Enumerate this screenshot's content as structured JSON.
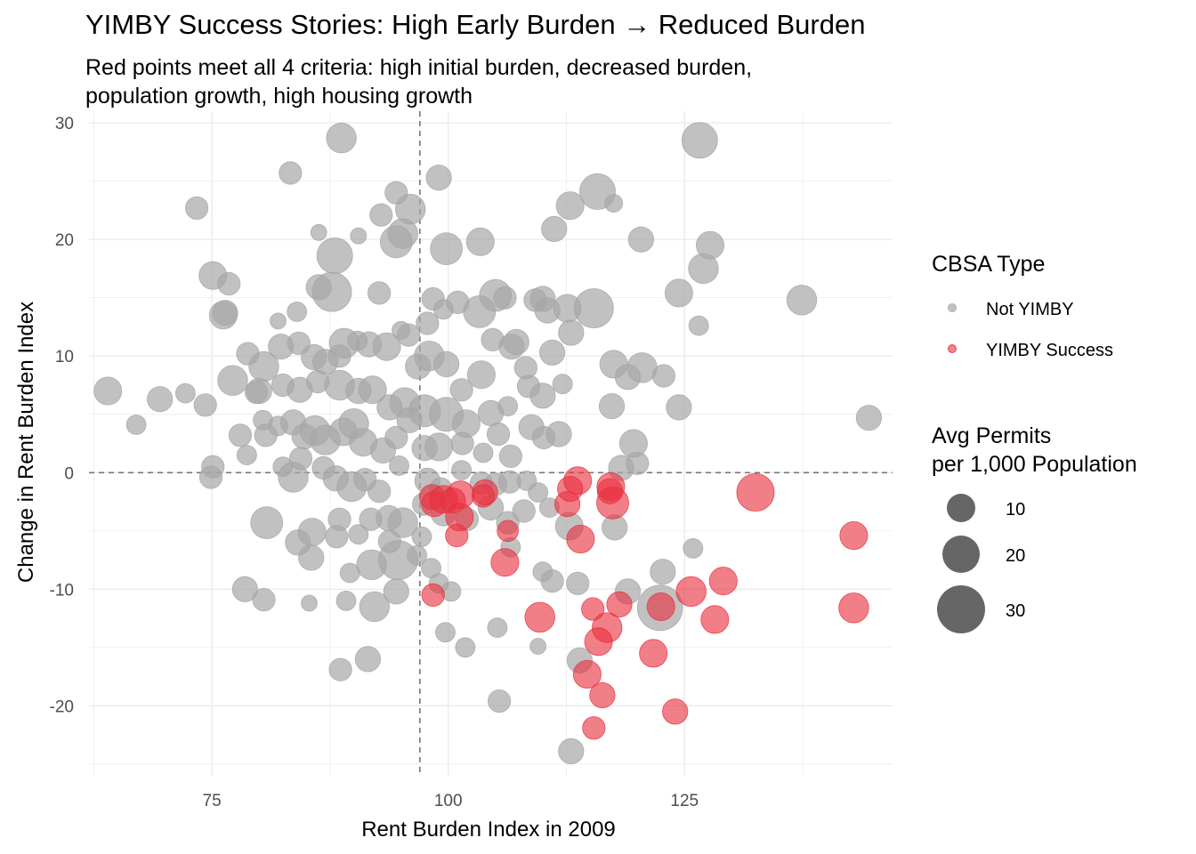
{
  "chart_data": {
    "type": "scatter",
    "title": "YIMBY Success Stories: High Early Burden → Reduced Burden",
    "subtitle_lines": [
      "Red points meet all 4 criteria: high initial burden, decreased burden,",
      "population growth, high housing growth"
    ],
    "xlabel": "Rent Burden Index in 2009",
    "ylabel": "Change in Rent Burden Index",
    "xlim": [
      62,
      147
    ],
    "ylim": [
      -26,
      31
    ],
    "x_ticks": [
      75,
      100,
      125
    ],
    "y_ticks": [
      -20,
      -10,
      0,
      10,
      20,
      30
    ],
    "reference_lines": {
      "x": 97,
      "y": 0
    },
    "grid": true,
    "colors": {
      "not_yimby": "#a6a6a6",
      "yimby": "#e8303f",
      "size_legend": "#555555",
      "grid": "#ebebeb",
      "reference": "#777777"
    },
    "legend": {
      "placement": "right",
      "color_title": "CBSA Type",
      "color_entries": [
        "Not YIMBY",
        "YIMBY Success"
      ],
      "size_title_lines": [
        "Avg Permits",
        "per 1,000 Population"
      ],
      "size_entries": [
        10,
        20,
        30
      ]
    },
    "series": [
      {
        "name": "YIMBY Success",
        "color": "#e8303f",
        "points": [
          [
            98.3,
            -2.1,
            10
          ],
          [
            98.5,
            -2.7,
            10
          ],
          [
            99.5,
            -2.3,
            12
          ],
          [
            100.5,
            -2.4,
            10
          ],
          [
            101.3,
            -1.9,
            12
          ],
          [
            101.2,
            -3.8,
            12
          ],
          [
            100.9,
            -5.4,
            8
          ],
          [
            103.9,
            -1.7,
            10
          ],
          [
            103.7,
            -2.0,
            8
          ],
          [
            106.3,
            -5.0,
            7
          ],
          [
            106.0,
            -7.7,
            12
          ],
          [
            98.4,
            -10.5,
            8
          ],
          [
            112.6,
            -2.7,
            10
          ],
          [
            113.7,
            -0.7,
            12
          ],
          [
            112.9,
            -1.4,
            10
          ],
          [
            117.2,
            -1.2,
            12
          ],
          [
            117.1,
            -1.6,
            10
          ],
          [
            117.4,
            -2.6,
            16
          ],
          [
            114.0,
            -5.7,
            12
          ],
          [
            109.7,
            -12.4,
            14
          ],
          [
            115.3,
            -11.7,
            8
          ],
          [
            116.8,
            -13.3,
            14
          ],
          [
            115.9,
            -14.5,
            12
          ],
          [
            114.7,
            -17.3,
            12
          ],
          [
            116.3,
            -19.1,
            10
          ],
          [
            115.4,
            -21.9,
            8
          ],
          [
            118.1,
            -11.3,
            10
          ],
          [
            121.7,
            -15.5,
            12
          ],
          [
            122.5,
            -11.5,
            12
          ],
          [
            125.7,
            -10.2,
            14
          ],
          [
            128.2,
            -12.6,
            12
          ],
          [
            129.1,
            -9.3,
            12
          ],
          [
            124.0,
            -20.5,
            10
          ],
          [
            132.5,
            -1.7,
            22
          ],
          [
            142.9,
            -5.4,
            12
          ],
          [
            142.9,
            -11.6,
            14
          ]
        ]
      },
      {
        "name": "Not YIMBY",
        "color": "#a6a6a6",
        "points": [
          [
            88.7,
            28.7,
            14
          ],
          [
            126.6,
            28.5,
            20
          ],
          [
            83.3,
            25.7,
            8
          ],
          [
            73.4,
            22.7,
            8
          ],
          [
            94.5,
            24.0,
            8
          ],
          [
            99.0,
            25.3,
            10
          ],
          [
            115.8,
            24.1,
            20
          ],
          [
            112.9,
            22.9,
            12
          ],
          [
            92.9,
            22.1,
            8
          ],
          [
            96.0,
            22.6,
            14
          ],
          [
            117.5,
            23.1,
            5
          ],
          [
            86.3,
            20.6,
            4
          ],
          [
            94.5,
            19.8,
            16
          ],
          [
            95.2,
            20.5,
            14
          ],
          [
            99.8,
            19.2,
            16
          ],
          [
            103.4,
            19.8,
            12
          ],
          [
            111.2,
            20.9,
            10
          ],
          [
            120.4,
            20.0,
            10
          ],
          [
            127.7,
            19.5,
            12
          ],
          [
            88.0,
            18.6,
            20
          ],
          [
            90.5,
            20.3,
            4
          ],
          [
            75.1,
            16.9,
            12
          ],
          [
            76.8,
            16.2,
            8
          ],
          [
            86.3,
            15.9,
            10
          ],
          [
            87.7,
            15.5,
            24
          ],
          [
            92.7,
            15.4,
            8
          ],
          [
            98.4,
            14.9,
            8
          ],
          [
            101.0,
            14.6,
            8
          ],
          [
            105.0,
            15.2,
            16
          ],
          [
            106.0,
            15.0,
            8
          ],
          [
            109.2,
            14.8,
            8
          ],
          [
            110.0,
            14.9,
            10
          ],
          [
            112.6,
            14.1,
            12
          ],
          [
            115.4,
            14.1,
            24
          ],
          [
            124.4,
            15.4,
            12
          ],
          [
            127.0,
            17.5,
            14
          ],
          [
            137.4,
            14.8,
            14
          ],
          [
            76.2,
            13.5,
            12
          ],
          [
            76.4,
            13.7,
            10
          ],
          [
            82.0,
            13.0,
            4
          ],
          [
            84.0,
            13.8,
            6
          ],
          [
            95.0,
            12.2,
            5
          ],
          [
            97.8,
            12.8,
            8
          ],
          [
            99.5,
            14.0,
            6
          ],
          [
            103.3,
            13.8,
            16
          ],
          [
            104.7,
            11.4,
            8
          ],
          [
            107.2,
            11.2,
            10
          ],
          [
            110.5,
            13.9,
            10
          ],
          [
            113.0,
            12.0,
            10
          ],
          [
            126.5,
            12.6,
            6
          ],
          [
            78.8,
            10.2,
            8
          ],
          [
            80.5,
            9.1,
            14
          ],
          [
            82.3,
            10.8,
            10
          ],
          [
            84.2,
            11.1,
            8
          ],
          [
            85.8,
            9.9,
            10
          ],
          [
            87.0,
            9.5,
            10
          ],
          [
            88.5,
            10.0,
            8
          ],
          [
            89.0,
            11.1,
            14
          ],
          [
            90.4,
            11.3,
            6
          ],
          [
            91.6,
            11.0,
            10
          ],
          [
            93.5,
            10.8,
            12
          ],
          [
            95.8,
            11.8,
            8
          ],
          [
            96.8,
            9.1,
            10
          ],
          [
            98.0,
            10.0,
            14
          ],
          [
            99.8,
            9.3,
            10
          ],
          [
            101.4,
            7.1,
            8
          ],
          [
            103.5,
            8.4,
            12
          ],
          [
            106.7,
            10.8,
            10
          ],
          [
            108.2,
            9.0,
            8
          ],
          [
            111.0,
            10.3,
            10
          ],
          [
            117.5,
            9.3,
            12
          ],
          [
            120.5,
            9.0,
            14
          ],
          [
            122.8,
            8.3,
            8
          ],
          [
            119.0,
            8.2,
            10
          ],
          [
            77.2,
            7.9,
            14
          ],
          [
            80.0,
            7.0,
            10
          ],
          [
            82.5,
            7.5,
            8
          ],
          [
            84.3,
            7.1,
            10
          ],
          [
            86.2,
            7.8,
            8
          ],
          [
            88.5,
            7.5,
            14
          ],
          [
            90.5,
            7.0,
            10
          ],
          [
            92.0,
            7.1,
            12
          ],
          [
            93.8,
            5.6,
            10
          ],
          [
            95.4,
            6.0,
            14
          ],
          [
            97.5,
            5.3,
            16
          ],
          [
            99.8,
            5.0,
            18
          ],
          [
            101.9,
            4.2,
            12
          ],
          [
            104.5,
            5.1,
            10
          ],
          [
            106.3,
            5.7,
            6
          ],
          [
            108.5,
            7.4,
            8
          ],
          [
            110.0,
            6.6,
            10
          ],
          [
            112.1,
            7.6,
            6
          ],
          [
            64.0,
            7.0,
            12
          ],
          [
            67.0,
            4.1,
            6
          ],
          [
            69.5,
            6.3,
            10
          ],
          [
            72.2,
            6.8,
            6
          ],
          [
            74.3,
            5.8,
            8
          ],
          [
            79.7,
            6.9,
            8
          ],
          [
            80.4,
            4.5,
            6
          ],
          [
            82.0,
            4.0,
            6
          ],
          [
            83.6,
            4.3,
            10
          ],
          [
            84.8,
            3.1,
            10
          ],
          [
            85.9,
            3.6,
            14
          ],
          [
            87.0,
            2.8,
            14
          ],
          [
            88.9,
            3.5,
            12
          ],
          [
            90.0,
            4.2,
            14
          ],
          [
            91.0,
            2.6,
            12
          ],
          [
            93.1,
            1.9,
            10
          ],
          [
            94.5,
            3.0,
            8
          ],
          [
            95.9,
            4.5,
            10
          ],
          [
            97.5,
            2.1,
            10
          ],
          [
            99.0,
            2.2,
            12
          ],
          [
            101.5,
            2.5,
            8
          ],
          [
            103.7,
            1.7,
            6
          ],
          [
            105.3,
            3.3,
            8
          ],
          [
            106.6,
            1.4,
            8
          ],
          [
            108.8,
            3.9,
            10
          ],
          [
            110.1,
            3.0,
            8
          ],
          [
            111.7,
            3.3,
            10
          ],
          [
            117.3,
            5.7,
            10
          ],
          [
            119.6,
            2.5,
            12
          ],
          [
            124.4,
            5.6,
            10
          ],
          [
            144.5,
            4.7,
            10
          ],
          [
            78.0,
            3.2,
            8
          ],
          [
            80.7,
            3.2,
            8
          ],
          [
            75.1,
            0.5,
            8
          ],
          [
            74.9,
            -0.4,
            8
          ],
          [
            78.7,
            1.5,
            6
          ],
          [
            82.5,
            0.5,
            6
          ],
          [
            83.6,
            -0.4,
            14
          ],
          [
            84.4,
            1.2,
            8
          ],
          [
            86.8,
            0.4,
            8
          ],
          [
            88.1,
            -0.5,
            10
          ],
          [
            89.8,
            -1.2,
            14
          ],
          [
            91.2,
            -0.6,
            8
          ],
          [
            92.7,
            -1.6,
            8
          ],
          [
            94.8,
            0.6,
            6
          ],
          [
            97.8,
            -0.7,
            10
          ],
          [
            99.2,
            -1.4,
            8
          ],
          [
            101.4,
            0.2,
            6
          ],
          [
            103.5,
            -0.9,
            8
          ],
          [
            105.0,
            -1.0,
            8
          ],
          [
            106.5,
            -0.8,
            8
          ],
          [
            108.3,
            -0.7,
            6
          ],
          [
            109.5,
            -1.7,
            6
          ],
          [
            118.3,
            0.4,
            10
          ],
          [
            120.0,
            0.8,
            8
          ],
          [
            80.8,
            -4.3,
            16
          ],
          [
            85.6,
            -5.1,
            12
          ],
          [
            88.5,
            -4.0,
            8
          ],
          [
            91.8,
            -4.0,
            8
          ],
          [
            93.7,
            -3.9,
            10
          ],
          [
            95.2,
            -4.3,
            14
          ],
          [
            97.4,
            -2.7,
            8
          ],
          [
            99.5,
            -3.5,
            10
          ],
          [
            102.0,
            -4.0,
            8
          ],
          [
            104.5,
            -3.0,
            10
          ],
          [
            106.3,
            -4.3,
            8
          ],
          [
            108.0,
            -3.3,
            8
          ],
          [
            110.7,
            -3.0,
            6
          ],
          [
            112.8,
            -4.6,
            12
          ],
          [
            117.6,
            -4.7,
            10
          ],
          [
            88.2,
            -5.5,
            8
          ],
          [
            90.5,
            -5.3,
            6
          ],
          [
            93.8,
            -5.9,
            8
          ],
          [
            97.2,
            -5.5,
            6
          ],
          [
            84.1,
            -6.0,
            10
          ],
          [
            85.5,
            -7.3,
            10
          ],
          [
            89.6,
            -8.6,
            6
          ],
          [
            91.9,
            -7.9,
            14
          ],
          [
            94.7,
            -7.5,
            24
          ],
          [
            96.7,
            -7.1,
            6
          ],
          [
            98.2,
            -8.2,
            6
          ],
          [
            99.0,
            -9.5,
            6
          ],
          [
            100.3,
            -10.2,
            6
          ],
          [
            106.6,
            -6.4,
            6
          ],
          [
            110.0,
            -8.5,
            6
          ],
          [
            111.0,
            -9.3,
            8
          ],
          [
            113.7,
            -9.5,
            8
          ],
          [
            125.9,
            -6.5,
            6
          ],
          [
            122.7,
            -8.5,
            10
          ],
          [
            78.5,
            -10.0,
            10
          ],
          [
            80.5,
            -10.9,
            8
          ],
          [
            85.3,
            -11.2,
            4
          ],
          [
            89.2,
            -11.0,
            6
          ],
          [
            92.2,
            -11.5,
            14
          ],
          [
            94.5,
            -10.2,
            10
          ],
          [
            99.7,
            -13.7,
            6
          ],
          [
            101.8,
            -15.0,
            6
          ],
          [
            105.2,
            -13.3,
            6
          ],
          [
            109.5,
            -14.9,
            4
          ],
          [
            88.6,
            -16.9,
            8
          ],
          [
            91.5,
            -16.0,
            10
          ],
          [
            105.4,
            -19.6,
            8
          ],
          [
            113.0,
            -23.9,
            10
          ],
          [
            113.9,
            -16.1,
            10
          ],
          [
            119.0,
            -10.2,
            10
          ],
          [
            122.4,
            -11.6,
            32
          ]
        ]
      }
    ]
  }
}
